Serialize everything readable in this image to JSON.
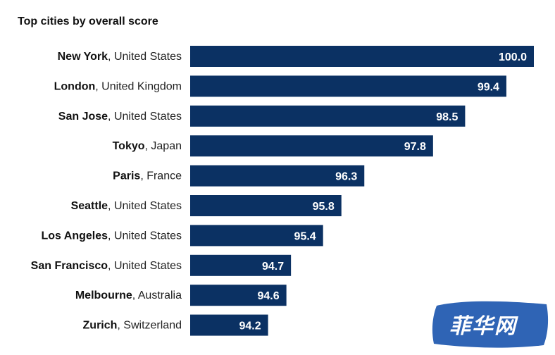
{
  "chart_data": {
    "type": "bar",
    "orientation": "horizontal",
    "title": "Top cities by overall score",
    "categories": [
      {
        "city": "New York",
        "country": ", United States"
      },
      {
        "city": "London",
        "country": ", United Kingdom"
      },
      {
        "city": "San Jose",
        "country": ", United States"
      },
      {
        "city": "Tokyo",
        "country": ", Japan"
      },
      {
        "city": "Paris",
        "country": ", France"
      },
      {
        "city": "Seattle",
        "country": ", United States"
      },
      {
        "city": "Los Angeles",
        "country": ", United States"
      },
      {
        "city": "San Francisco",
        "country": ", United States"
      },
      {
        "city": "Melbourne",
        "country": ", Australia"
      },
      {
        "city": "Zurich",
        "country": ", Switzerland"
      }
    ],
    "values": [
      100.0,
      99.4,
      98.5,
      97.8,
      96.3,
      95.8,
      95.4,
      94.7,
      94.6,
      94.2
    ],
    "value_labels": [
      "100.0",
      "99.4",
      "98.5",
      "97.8",
      "96.3",
      "95.8",
      "95.4",
      "94.7",
      "94.6",
      "94.2"
    ],
    "xlim": [
      92.5,
      100.0
    ],
    "grid": false,
    "legend": "none",
    "bar_color": "#0b3163"
  },
  "watermark": {
    "text": "菲华网",
    "color": "#2f64b5"
  }
}
